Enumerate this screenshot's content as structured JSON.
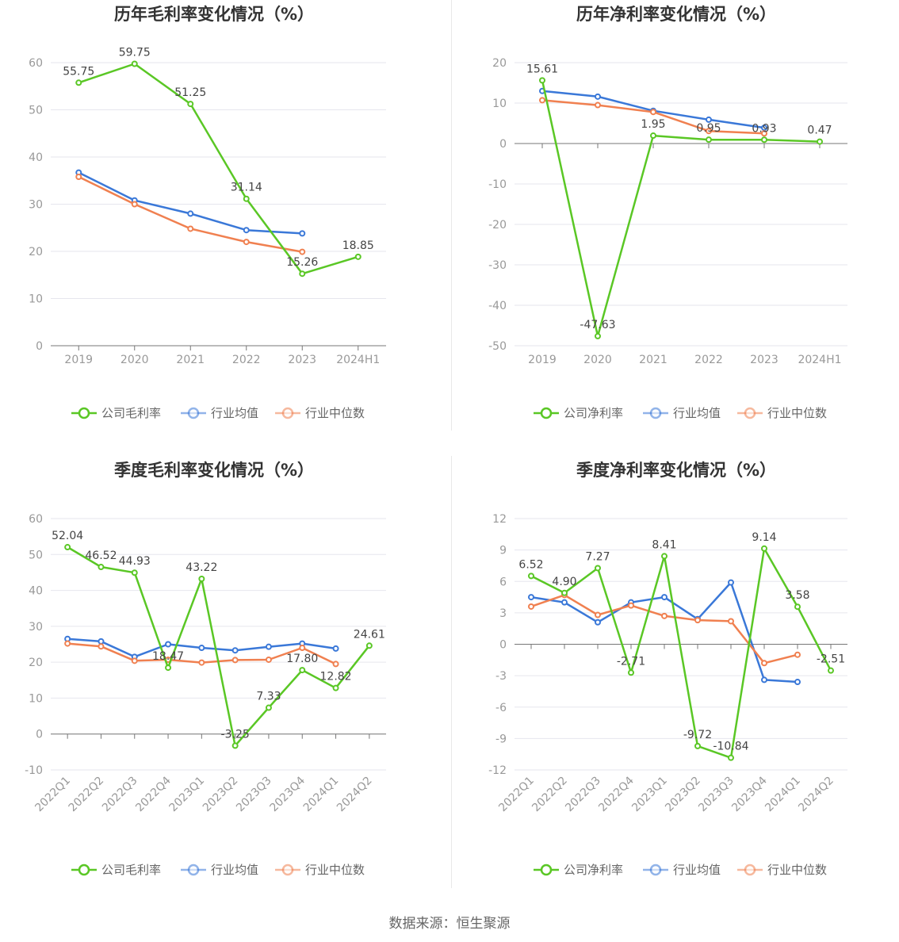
{
  "source_text": "数据来源：恒生聚源",
  "chart_data": [
    {
      "type": "line",
      "title": "历年毛利率变化情况（%）",
      "categories": [
        "2019",
        "2020",
        "2021",
        "2022",
        "2023",
        "2024H1"
      ],
      "ylim": [
        0,
        60
      ],
      "yticks": [
        "0",
        "10",
        "20",
        "30",
        "40",
        "50",
        "60"
      ],
      "ytick_values": [
        0,
        10,
        20,
        30,
        40,
        50,
        60
      ],
      "rotate_x": false,
      "series": [
        {
          "name": "公司毛利率",
          "color": "#5ac725",
          "values": [
            55.75,
            59.75,
            51.25,
            31.14,
            15.26,
            18.85
          ],
          "labels": [
            "55.75",
            "59.75",
            "51.25",
            "31.14",
            "15.26",
            "18.85"
          ]
        },
        {
          "name": "行业均值",
          "color": "#3a78d8",
          "values": [
            36.7,
            30.8,
            28.0,
            24.5,
            23.8,
            null
          ]
        },
        {
          "name": "行业中位数",
          "color": "#f08050",
          "values": [
            35.8,
            30.0,
            24.8,
            22.0,
            19.9,
            null
          ]
        }
      ]
    },
    {
      "type": "line",
      "title": "历年净利率变化情况（%）",
      "categories": [
        "2019",
        "2020",
        "2021",
        "2022",
        "2023",
        "2024H1"
      ],
      "ylim": [
        -50,
        20
      ],
      "yticks": [
        "-50",
        "-40",
        "-30",
        "-20",
        "-10",
        "0",
        "10",
        "20"
      ],
      "ytick_values": [
        -50,
        -40,
        -30,
        -20,
        -10,
        0,
        10,
        20
      ],
      "rotate_x": false,
      "series": [
        {
          "name": "公司净利率",
          "color": "#5ac725",
          "values": [
            15.61,
            -47.63,
            1.95,
            0.95,
            0.93,
            0.47
          ],
          "labels": [
            "15.61",
            "-47.63",
            "1.95",
            "0.95",
            "0.93",
            "0.47"
          ]
        },
        {
          "name": "行业均值",
          "color": "#3a78d8",
          "values": [
            13.0,
            11.6,
            8.1,
            5.9,
            3.9,
            null
          ]
        },
        {
          "name": "行业中位数",
          "color": "#f08050",
          "values": [
            10.7,
            9.5,
            7.8,
            3.1,
            2.5,
            null
          ]
        }
      ]
    },
    {
      "type": "line",
      "title": "季度毛利率变化情况（%）",
      "categories": [
        "2022Q1",
        "2022Q2",
        "2022Q3",
        "2022Q4",
        "2023Q1",
        "2023Q2",
        "2023Q3",
        "2023Q4",
        "2024Q1",
        "2024Q2"
      ],
      "ylim": [
        -10,
        60
      ],
      "yticks": [
        "-10",
        "0",
        "10",
        "20",
        "30",
        "40",
        "50",
        "60"
      ],
      "ytick_values": [
        -10,
        0,
        10,
        20,
        30,
        40,
        50,
        60
      ],
      "rotate_x": true,
      "series": [
        {
          "name": "公司毛利率",
          "color": "#5ac725",
          "values": [
            52.04,
            46.52,
            44.93,
            18.47,
            43.22,
            -3.25,
            7.33,
            17.8,
            12.82,
            24.61
          ],
          "labels": [
            "52.04",
            "46.52",
            "44.93",
            "18.47",
            "43.22",
            "-3.25",
            "7.33",
            "17.80",
            "12.82",
            "24.61"
          ]
        },
        {
          "name": "行业均值",
          "color": "#3a78d8",
          "values": [
            26.5,
            25.8,
            21.5,
            25.0,
            24.0,
            23.3,
            24.3,
            25.2,
            23.8,
            null
          ]
        },
        {
          "name": "行业中位数",
          "color": "#f08050",
          "values": [
            25.2,
            24.4,
            20.4,
            20.7,
            19.9,
            20.6,
            20.7,
            24.0,
            19.5,
            null
          ]
        }
      ]
    },
    {
      "type": "line",
      "title": "季度净利率变化情况（%）",
      "categories": [
        "2022Q1",
        "2022Q2",
        "2022Q3",
        "2022Q4",
        "2023Q1",
        "2023Q2",
        "2023Q3",
        "2023Q4",
        "2024Q1",
        "2024Q2"
      ],
      "ylim": [
        -12,
        12
      ],
      "yticks": [
        "-12",
        "-9",
        "-6",
        "-3",
        "0",
        "3",
        "6",
        "9",
        "12"
      ],
      "ytick_values": [
        -12,
        -9,
        -6,
        -3,
        0,
        3,
        6,
        9,
        12
      ],
      "rotate_x": true,
      "series": [
        {
          "name": "公司净利率",
          "color": "#5ac725",
          "values": [
            6.52,
            4.9,
            7.27,
            -2.71,
            8.41,
            -9.72,
            -10.84,
            9.14,
            3.58,
            -2.51
          ],
          "labels": [
            "6.52",
            "4.90",
            "7.27",
            "-2.71",
            "8.41",
            "-9.72",
            "-10.84",
            "9.14",
            "3.58",
            "-2.51"
          ]
        },
        {
          "name": "行业均值",
          "color": "#3a78d8",
          "values": [
            4.5,
            4.0,
            2.1,
            4.0,
            4.5,
            2.4,
            5.9,
            -3.4,
            -3.6,
            null
          ]
        },
        {
          "name": "行业中位数",
          "color": "#f08050",
          "values": [
            3.6,
            4.7,
            2.8,
            3.7,
            2.7,
            2.3,
            2.2,
            -1.8,
            -1.0,
            null
          ]
        }
      ]
    }
  ]
}
